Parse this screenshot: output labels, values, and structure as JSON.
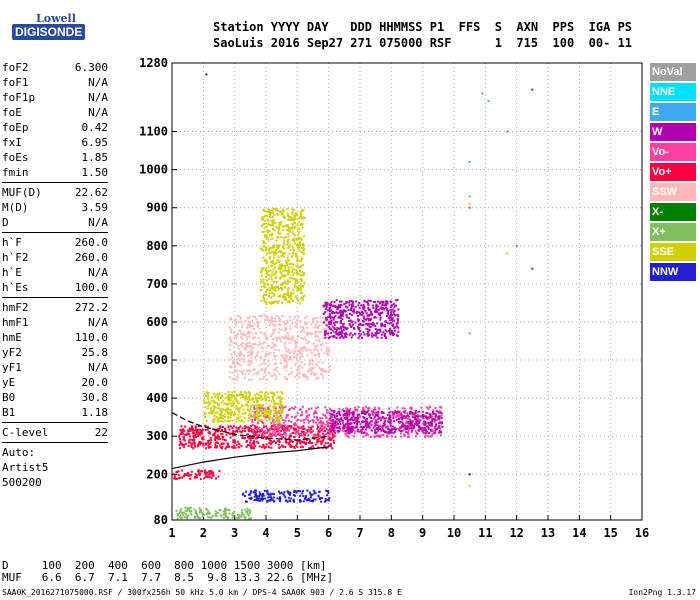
{
  "logo": {
    "line1": "Lowell",
    "line2": "DIGISONDE"
  },
  "header": {
    "line1": "Station YYYY DAY   DDD HHMMSS P1  FFS  S  AXN  PPS  IGA PS",
    "line2": "SaoLuis 2016 Sep27 271 075000 RSF      1  715  100  00- 11"
  },
  "params_group1": [
    {
      "name": "foF2",
      "value": "6.300"
    },
    {
      "name": "foF1",
      "value": "N/A"
    },
    {
      "name": "foF1p",
      "value": "N/A"
    },
    {
      "name": "foE",
      "value": "N/A"
    },
    {
      "name": "foEp",
      "value": "0.42"
    },
    {
      "name": "fxI",
      "value": "6.95"
    },
    {
      "name": "foEs",
      "value": "1.85"
    },
    {
      "name": "fmin",
      "value": "1.50"
    }
  ],
  "params_group2": [
    {
      "name": "MUF(D)",
      "value": "22.62"
    },
    {
      "name": "M(D)",
      "value": "3.59"
    },
    {
      "name": "D",
      "value": "N/A"
    }
  ],
  "params_group3": [
    {
      "name": "h`F",
      "value": "260.0"
    },
    {
      "name": "h`F2",
      "value": "260.0"
    },
    {
      "name": "h`E",
      "value": "N/A"
    },
    {
      "name": "h`Es",
      "value": "100.0"
    }
  ],
  "params_group4": [
    {
      "name": "hmF2",
      "value": "272.2"
    },
    {
      "name": "hmF1",
      "value": "N/A"
    },
    {
      "name": "hmE",
      "value": "110.0"
    },
    {
      "name": "yF2",
      "value": "25.8"
    },
    {
      "name": "yF1",
      "value": "N/A"
    },
    {
      "name": "yE",
      "value": "20.0"
    },
    {
      "name": "B0",
      "value": "30.8"
    },
    {
      "name": "B1",
      "value": "1.18"
    }
  ],
  "params_group5": [
    {
      "name": "C-level",
      "value": "22"
    }
  ],
  "autoscale": [
    "Auto:",
    "Artist5",
    "500200"
  ],
  "legend": [
    {
      "label": "NoVal",
      "color": "#a0a0a0"
    },
    {
      "label": "NNE",
      "color": "#00e0ff"
    },
    {
      "label": "E",
      "color": "#40a8f0"
    },
    {
      "label": "W",
      "color": "#b000b0"
    },
    {
      "label": "Vo-",
      "color": "#ff40a0"
    },
    {
      "label": "Vo+",
      "color": "#ff0040"
    },
    {
      "label": "SSW",
      "color": "#ffb8b8"
    },
    {
      "label": "X-",
      "color": "#008000"
    },
    {
      "label": "X+",
      "color": "#80c060"
    },
    {
      "label": "SSE",
      "color": "#d0d000"
    },
    {
      "label": "NNW",
      "color": "#2020d0"
    }
  ],
  "bottom_table": {
    "row1": "D     100  200  400  600  800 1000 1500 3000 [km]",
    "row2": "MUF   6.6  6.7  7.1  7.7  8.5  9.8 13.3 22.6 [MHz]"
  },
  "footer_left": "SAA0K_2016271075000.RSF / 300fx256h 50 kHz 5.0 km / DPS-4 SAA0K 903 / 2.6 S 315.8 E",
  "footer_right": "Ion2Png 1.3.17",
  "chart_data": {
    "type": "scatter",
    "title": "",
    "xlabel": "",
    "ylabel": "",
    "xlim": [
      1,
      16
    ],
    "ylim": [
      80,
      1280
    ],
    "x_ticks": [
      1,
      2,
      3,
      4,
      5,
      6,
      7,
      8,
      9,
      10,
      11,
      12,
      13,
      14,
      15,
      16
    ],
    "y_ticks": [
      80,
      200,
      300,
      400,
      500,
      600,
      700,
      800,
      900,
      1000,
      1100,
      1280
    ],
    "grid": true,
    "legend_position": "right",
    "trace_lines": [
      {
        "name": "",
        "points": [
          [
            1,
            215
          ],
          [
            2,
            232
          ],
          [
            3,
            245
          ],
          [
            4,
            255
          ],
          [
            5,
            262
          ],
          [
            6,
            272
          ]
        ]
      },
      {
        "name": "",
        "points": [
          [
            1,
            362
          ],
          [
            1.5,
            340
          ],
          [
            2,
            325
          ],
          [
            3,
            305
          ],
          [
            4,
            295
          ],
          [
            5,
            290
          ],
          [
            6,
            300
          ]
        ]
      }
    ],
    "echo_regions": [
      {
        "x": [
          1.2,
          6.2
        ],
        "y": [
          270,
          330
        ],
        "color": "#ff0040"
      },
      {
        "x": [
          3.5,
          9.6
        ],
        "y": [
          300,
          380
        ],
        "color": "#ff40a0"
      },
      {
        "x": [
          6,
          9.6
        ],
        "y": [
          310,
          370
        ],
        "color": "#b000b0"
      },
      {
        "x": [
          2.8,
          6
        ],
        "y": [
          450,
          620
        ],
        "color": "#ffb8b8"
      },
      {
        "x": [
          5.8,
          8.2
        ],
        "y": [
          560,
          660
        ],
        "color": "#b000b0"
      },
      {
        "x": [
          3.8,
          5.2
        ],
        "y": [
          650,
          900
        ],
        "color": "#d0d000"
      },
      {
        "x": [
          1.1,
          3.5
        ],
        "y": [
          85,
          115
        ],
        "color": "#80c060"
      },
      {
        "x": [
          3.2,
          6
        ],
        "y": [
          130,
          160
        ],
        "color": "#2020d0"
      },
      {
        "x": [
          2,
          4.5
        ],
        "y": [
          340,
          420
        ],
        "color": "#d0d000"
      },
      {
        "x": [
          1,
          2.5
        ],
        "y": [
          190,
          215
        ],
        "color": "#ff0040"
      }
    ],
    "isolated_points": [
      {
        "x": 10.5,
        "y": 1020,
        "color": "#40a8f0"
      },
      {
        "x": 10.5,
        "y": 930,
        "color": "#00e0ff"
      },
      {
        "x": 10.5,
        "y": 910,
        "color": "#d0d000"
      },
      {
        "x": 10.5,
        "y": 900,
        "color": "#ff40a0"
      },
      {
        "x": 10.9,
        "y": 1200,
        "color": "#40a8f0"
      },
      {
        "x": 11.1,
        "y": 1180,
        "color": "#40a8f0"
      },
      {
        "x": 11.7,
        "y": 1100,
        "color": "#40a8f0"
      },
      {
        "x": 12.5,
        "y": 1210,
        "color": "#b000b0"
      },
      {
        "x": 12.5,
        "y": 740,
        "color": "#b000b0"
      },
      {
        "x": 10.5,
        "y": 570,
        "color": "#40a8f0"
      },
      {
        "x": 11.7,
        "y": 780,
        "color": "#d0d000"
      },
      {
        "x": 12,
        "y": 800,
        "color": "#ff40a0"
      },
      {
        "x": 10.5,
        "y": 200,
        "color": "#2020d0"
      },
      {
        "x": 10.5,
        "y": 170,
        "color": "#d0d000"
      },
      {
        "x": 2.1,
        "y": 1250,
        "color": "#2020d0"
      }
    ]
  }
}
